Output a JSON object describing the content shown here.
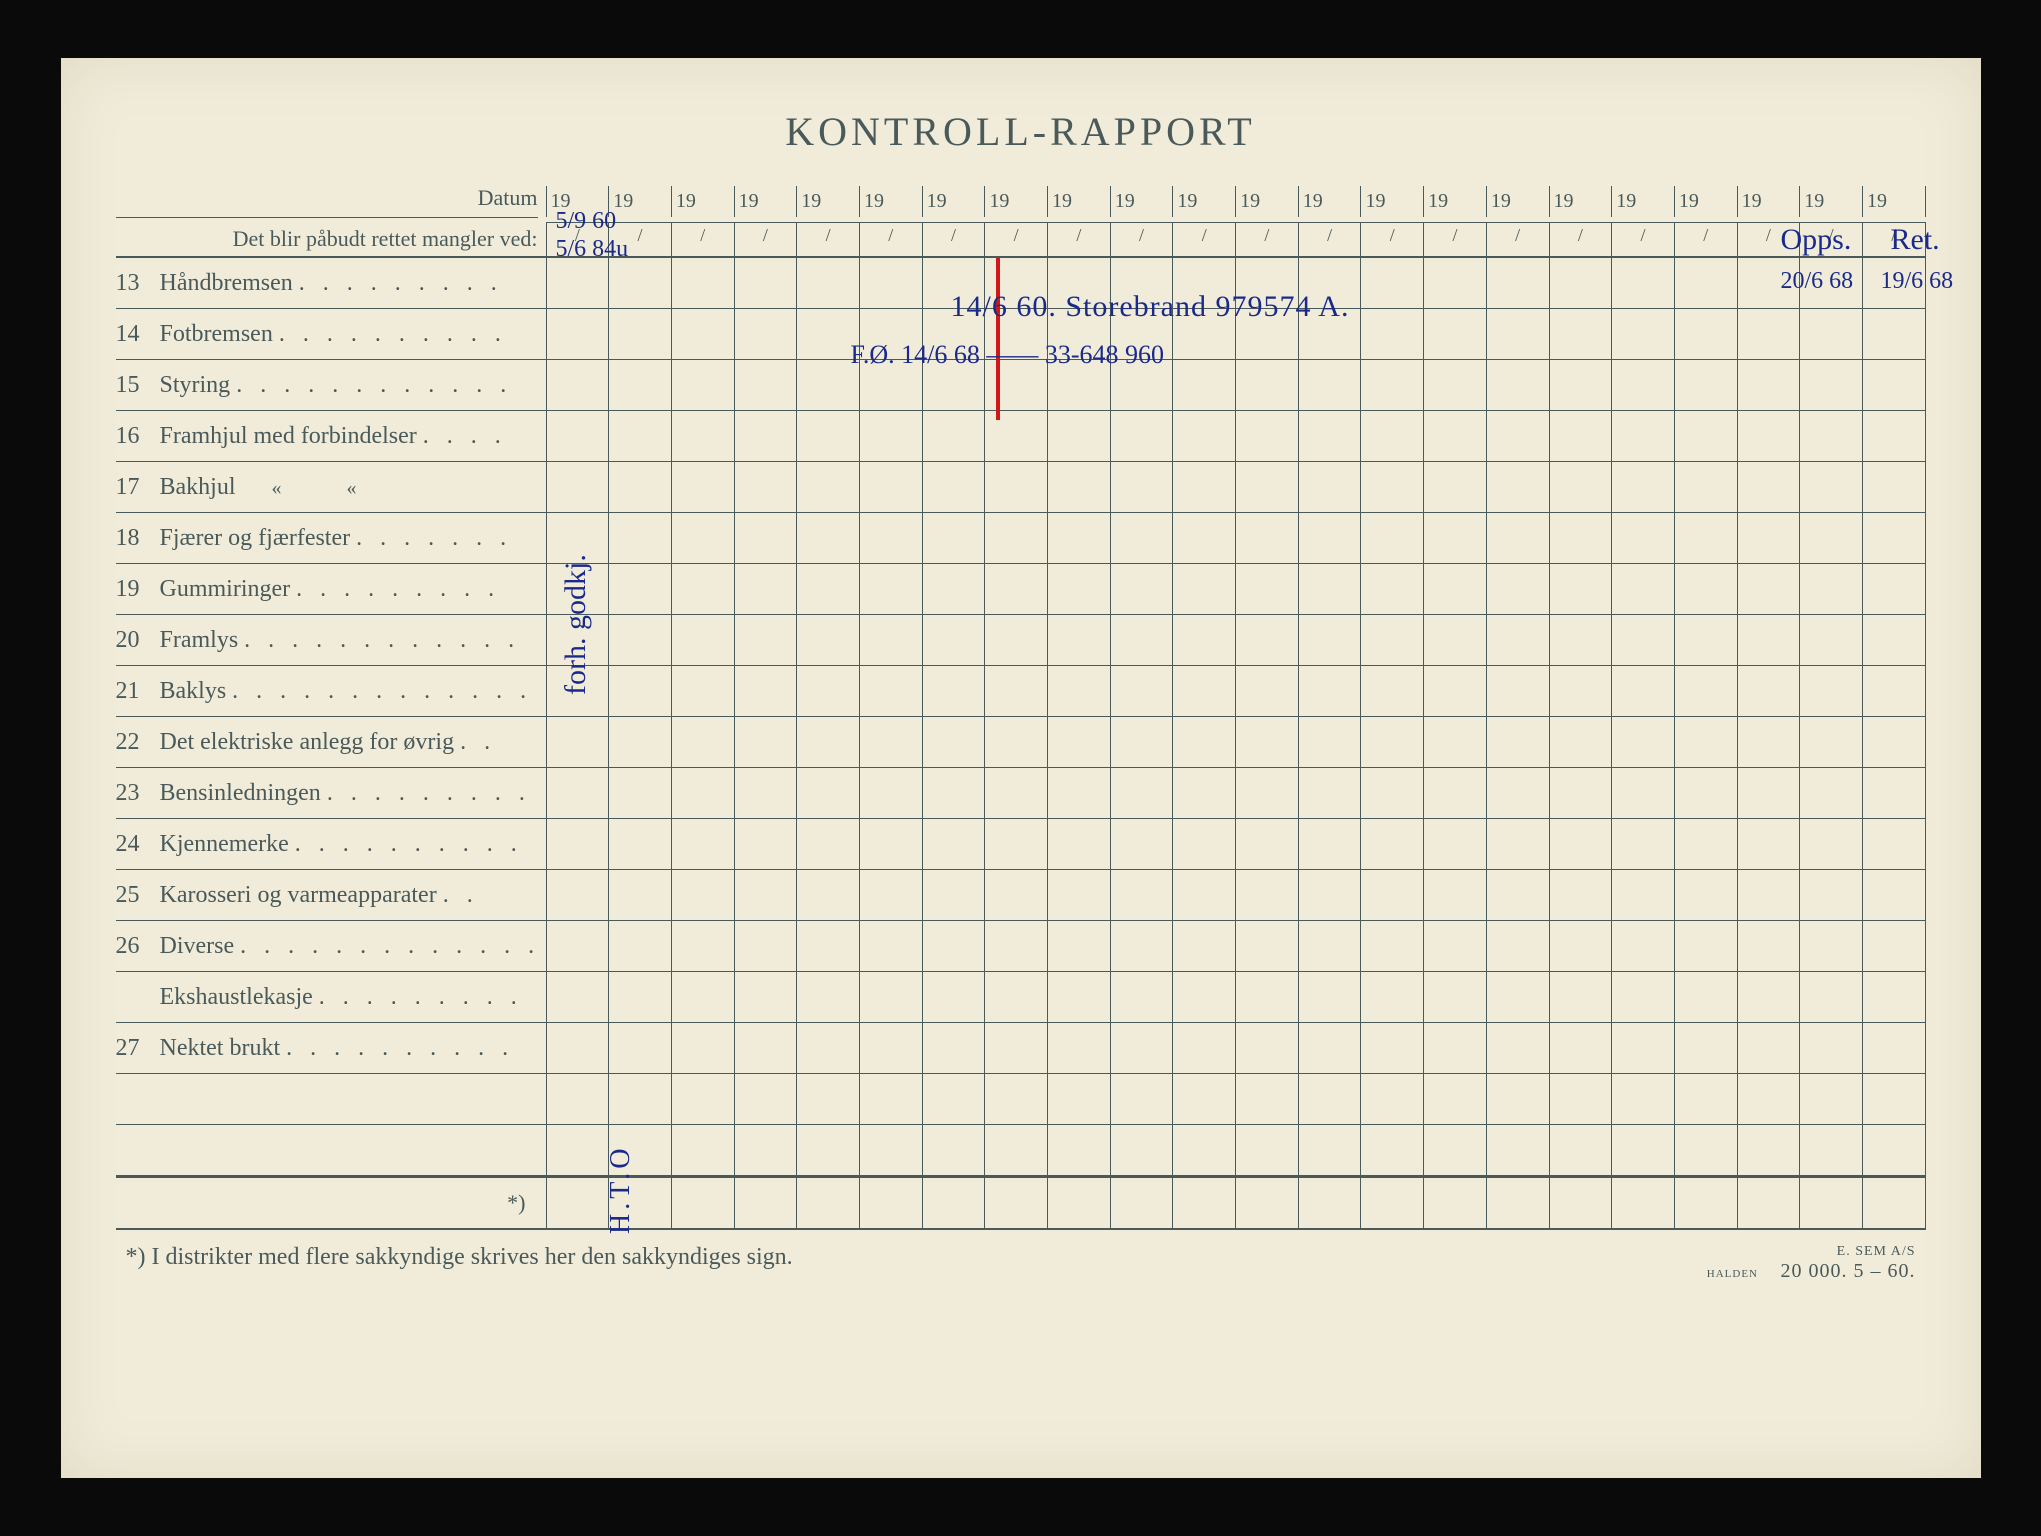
{
  "title": "KONTROLL-RAPPORT",
  "header": {
    "datum_label": "Datum",
    "sub_label": "Det blir påbudt rettet mangler ved:",
    "year_prefix": "19",
    "slash": "/",
    "col_count": 22
  },
  "rows": [
    {
      "num": "13",
      "label": "Håndbremsen",
      "dots": ". . . . . . . . ."
    },
    {
      "num": "14",
      "label": "Fotbremsen",
      "dots": ". . . . . . . . . ."
    },
    {
      "num": "15",
      "label": "Styring",
      "dots": ". . . . . . . . . . . ."
    },
    {
      "num": "16",
      "label": "Framhjul med forbindelser",
      "dots": ". . . ."
    },
    {
      "num": "17",
      "label": "Bakhjul",
      "dots": "",
      "ditto": "«          «"
    },
    {
      "num": "18",
      "label": "Fjærer og fjærfester",
      "dots": ". . . . . . ."
    },
    {
      "num": "19",
      "label": "Gummiringer",
      "dots": ". . . . . . . . ."
    },
    {
      "num": "20",
      "label": "Framlys",
      "dots": ". . . . . . . . . . . ."
    },
    {
      "num": "21",
      "label": "Baklys",
      "dots": ". . . . . . . . . . . . ."
    },
    {
      "num": "22",
      "label": "Det elektriske anlegg for øvrig",
      "dots": ". ."
    },
    {
      "num": "23",
      "label": "Bensinledningen",
      "dots": ". . . . . . . . ."
    },
    {
      "num": "24",
      "label": "Kjennemerke",
      "dots": ". . . . . . . . . ."
    },
    {
      "num": "25",
      "label": "Karosseri og varmeapparater",
      "dots": ". ."
    },
    {
      "num": "26",
      "label": "Diverse",
      "dots": ". . . . . . . . . . . . ."
    },
    {
      "num": "",
      "label": "Ekshaustlekasje",
      "dots": ". . . . . . . . ."
    },
    {
      "num": "27",
      "label": "Nektet brukt",
      "dots": ". . . . . . . . . ."
    },
    {
      "num": "",
      "label": "",
      "dots": ""
    },
    {
      "num": "",
      "label": "",
      "dots": ""
    }
  ],
  "footer_label": "*)",
  "footnote": "*)   I distrikter med flere sakkyndige skrives her den sakkyndiges sign.",
  "printer_line1": "E. SEM A/S",
  "printer_line2": "HALDEN",
  "printer_line3": "20 000.   5 – 60.",
  "handwriting": {
    "top_date1": "5/9 60",
    "top_date2": "5/6 84u",
    "row13_note": "14/6 60. Storebrand 979574 A.",
    "row14_note": "F.Ø. 14/6 68   ——   33-648 960",
    "col_vertical": "forh. godkj.",
    "right_top1": "Opps.",
    "right_top2": "Ret.",
    "right_date1": "20/6 68",
    "right_date2": "19/6 68",
    "bottom_vert": "H.T.O"
  },
  "colors": {
    "paper_bg": "#f1ecd9",
    "line": "#4a5a5a",
    "ink_blue": "#1a2a8a",
    "ink_red": "#d01818"
  }
}
